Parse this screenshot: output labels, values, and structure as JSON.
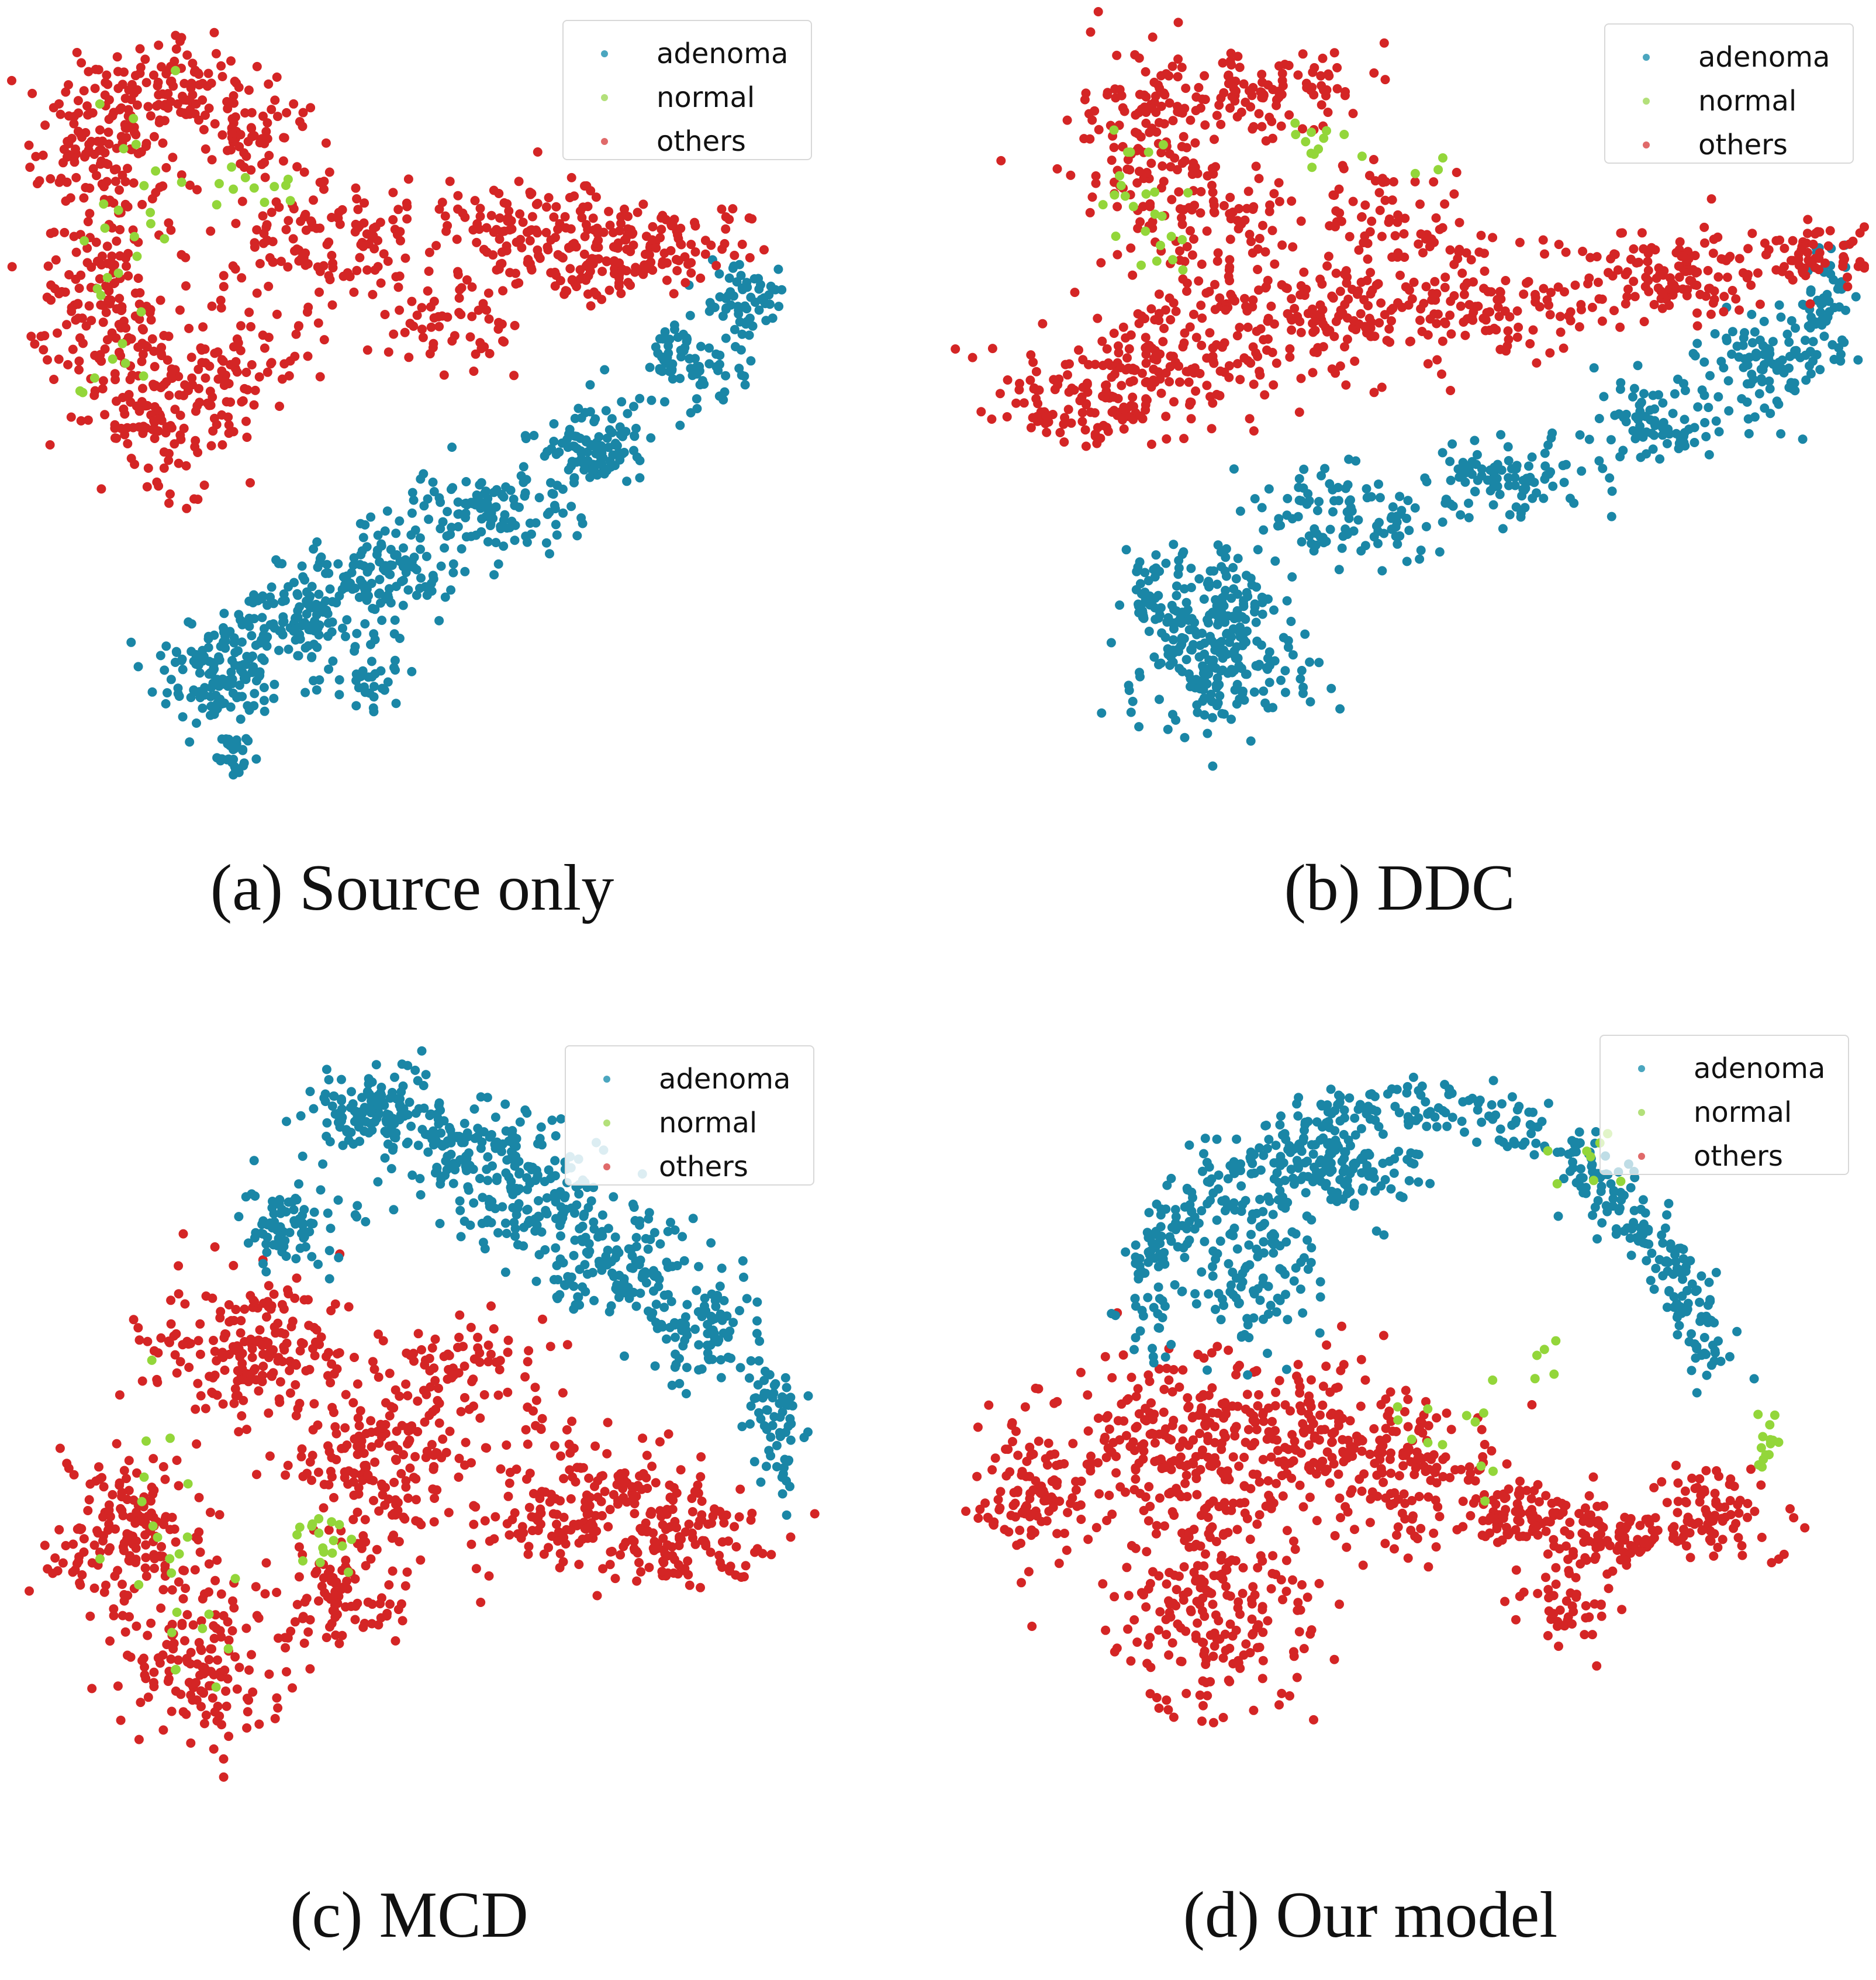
{
  "colors": {
    "adenoma": "#1a86a6",
    "normal": "#93d63a",
    "others": "#d42525"
  },
  "chart_data": [
    {
      "type": "scatter",
      "panel": "a",
      "caption": "(a) Source only",
      "legend": [
        "adenoma",
        "normal",
        "others"
      ],
      "legend_placement": "top-right",
      "axes": "off",
      "series": [
        {
          "name": "adenoma",
          "approx_count": 800
        },
        {
          "name": "normal",
          "approx_count": 40
        },
        {
          "name": "others",
          "approx_count": 1100
        }
      ]
    },
    {
      "type": "scatter",
      "panel": "b",
      "caption": "(b) DDC",
      "legend": [
        "adenoma",
        "normal",
        "others"
      ],
      "legend_placement": "top-right",
      "axes": "off",
      "series": [
        {
          "name": "adenoma",
          "approx_count": 750
        },
        {
          "name": "normal",
          "approx_count": 40
        },
        {
          "name": "others",
          "approx_count": 1100
        }
      ]
    },
    {
      "type": "scatter",
      "panel": "c",
      "caption": "(c) MCD",
      "legend": [
        "adenoma",
        "normal",
        "others"
      ],
      "legend_placement": "top-right",
      "axes": "off",
      "series": [
        {
          "name": "adenoma",
          "approx_count": 750
        },
        {
          "name": "normal",
          "approx_count": 40
        },
        {
          "name": "others",
          "approx_count": 1150
        }
      ]
    },
    {
      "type": "scatter",
      "panel": "d",
      "caption": "(d) Our model",
      "legend": [
        "adenoma",
        "normal",
        "others"
      ],
      "legend_placement": "top-right",
      "axes": "off",
      "series": [
        {
          "name": "adenoma",
          "approx_count": 700
        },
        {
          "name": "normal",
          "approx_count": 40
        },
        {
          "name": "others",
          "approx_count": 1150
        }
      ]
    }
  ]
}
